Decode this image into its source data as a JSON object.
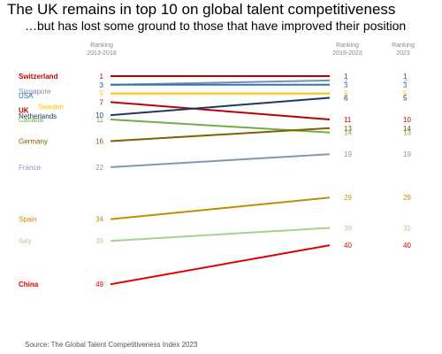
{
  "title": "The UK remains in top 10 on global talent competitiveness",
  "subtitle": "…but has lost some ground to those that have improved their position",
  "source": "Source: The Global Talent Competitiveness Index 2023",
  "chart_data": {
    "type": "line",
    "column_headers": [
      "Ranking\n2013-2018",
      "Ranking\n2019-2023",
      "Ranking\n2023"
    ],
    "y_axis": "rank (1 at top)",
    "ylim": [
      1,
      49
    ],
    "grid": false,
    "legend": "none (country labels on left)",
    "series": [
      {
        "name": "Switzerland",
        "color": "#c00000",
        "values": [
          1,
          1
        ],
        "rank_2023": 1
      },
      {
        "name": "Singapore",
        "color": "#7f8fa6",
        "values": [
          3,
          2
        ],
        "rank_2023": 2
      },
      {
        "name": "USA",
        "color": "#2e75b6",
        "values": [
          3,
          3
        ],
        "rank_2023": 3
      },
      {
        "name": "Sweden",
        "color": "#ffc000",
        "values": [
          5,
          5
        ],
        "rank_2023": 5
      },
      {
        "name": "UK",
        "color": "#c00000",
        "values": [
          7,
          11
        ],
        "rank_2023": 10
      },
      {
        "name": "Netherlands",
        "color": "#1f3864",
        "values": [
          10,
          6
        ],
        "rank_2023": 5
      },
      {
        "name": "Canada",
        "color": "#70ad47",
        "values": [
          11,
          14
        ],
        "rank_2023": 13
      },
      {
        "name": "Germany",
        "color": "#7f6000",
        "values": [
          16,
          13
        ],
        "rank_2023": 14
      },
      {
        "name": "France",
        "color": "#8497b0",
        "values": [
          22,
          19
        ],
        "rank_2023": 19
      },
      {
        "name": "Spain",
        "color": "#bf9000",
        "values": [
          34,
          29
        ],
        "rank_2023": 29
      },
      {
        "name": "Italy",
        "color": "#a9d18e",
        "values": [
          39,
          36
        ],
        "rank_2023": 32
      },
      {
        "name": "China",
        "color": "#e00000",
        "values": [
          49,
          40
        ],
        "rank_2023": 40
      }
    ]
  }
}
